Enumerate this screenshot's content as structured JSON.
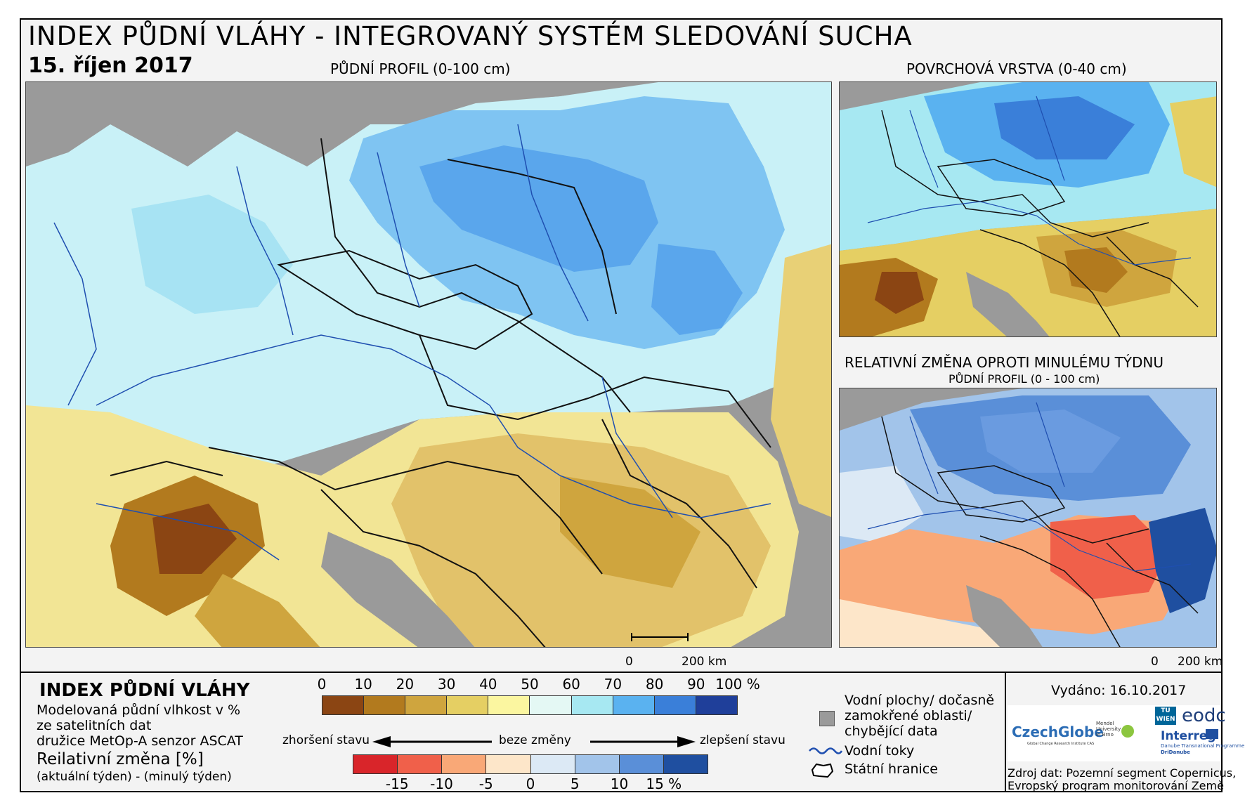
{
  "header": {
    "title": "INDEX PŮDNÍ VLÁHY - INTEGROVANÝ SYSTÉM SLEDOVÁNÍ SUCHA",
    "date": "15. říjen 2017"
  },
  "panels": {
    "main_label": "PŮDNÍ PROFIL (0-100 cm)",
    "surface_label": "POVRCHOVÁ VRSTVA (0-40 cm)",
    "change_label": "RELATIVNÍ ZMĚNA OPROTI MINULÉMU TÝDNU",
    "change_sublabel": "PŮDNÍ PROFIL (0 - 100 cm)",
    "scale_main": {
      "zero": "0",
      "end": "200 km"
    },
    "scale_small": {
      "zero": "0",
      "end": "200 km"
    }
  },
  "legend": {
    "title": "INDEX PŮDNÍ VLÁHY",
    "desc_lines": [
      "Modelovaná půdní vlhkost v %",
      "ze satelitních dat",
      "družice MetOp-A senzor ASCAT"
    ],
    "change_title": "Reilativní změna [%]",
    "change_desc": "(aktuální týden) - (minulý týden)",
    "moisture_ticks": [
      "0",
      "10",
      "20",
      "30",
      "40",
      "50",
      "60",
      "70",
      "80",
      "90",
      "100 %"
    ],
    "moisture_colors": [
      "#8b4513",
      "#b27a1e",
      "#cfa53e",
      "#e5cf63",
      "#fbf6a0",
      "#e4f8f4",
      "#a7e8f2",
      "#5ab2f0",
      "#3a7fd9",
      "#1f3f9a"
    ],
    "worse_label": "zhoršení stavu",
    "nochange_label": "beze změny",
    "better_label": "zlepšení stavu",
    "change_ticks": [
      "-15",
      "-10",
      "-5",
      "0",
      "5",
      "10",
      "15 %"
    ],
    "change_colors": [
      "#d9252a",
      "#f0604a",
      "#f9a877",
      "#fde6c9",
      "#dce9f5",
      "#a2c4ea",
      "#5a8fd8",
      "#1f4fa0"
    ],
    "water_label": [
      "Vodní plochy/ dočasně",
      "zamokřené oblasti/",
      "chybějící data"
    ],
    "rivers_label": "Vodní toky",
    "borders_label": "Státní hranice"
  },
  "info": {
    "issued": "Vydáno: 16.10.2017",
    "source_line1": "Zdroj dat: Pozemní segment Copernicus,",
    "source_line2": "Evropský program monitorování Země",
    "logo_czechglobe": "CzechGlobe",
    "logo_czechglobe_sub": "Global Change Research Institute CAS",
    "logo_mendel": "Mendel University in Brno",
    "logo_tu": "TU WIEN",
    "logo_eodc": "eodc",
    "logo_interreg": "Interreg",
    "logo_interreg_sub1": "Danube Transnational Programme",
    "logo_interreg_sub2": "DriDanube"
  }
}
